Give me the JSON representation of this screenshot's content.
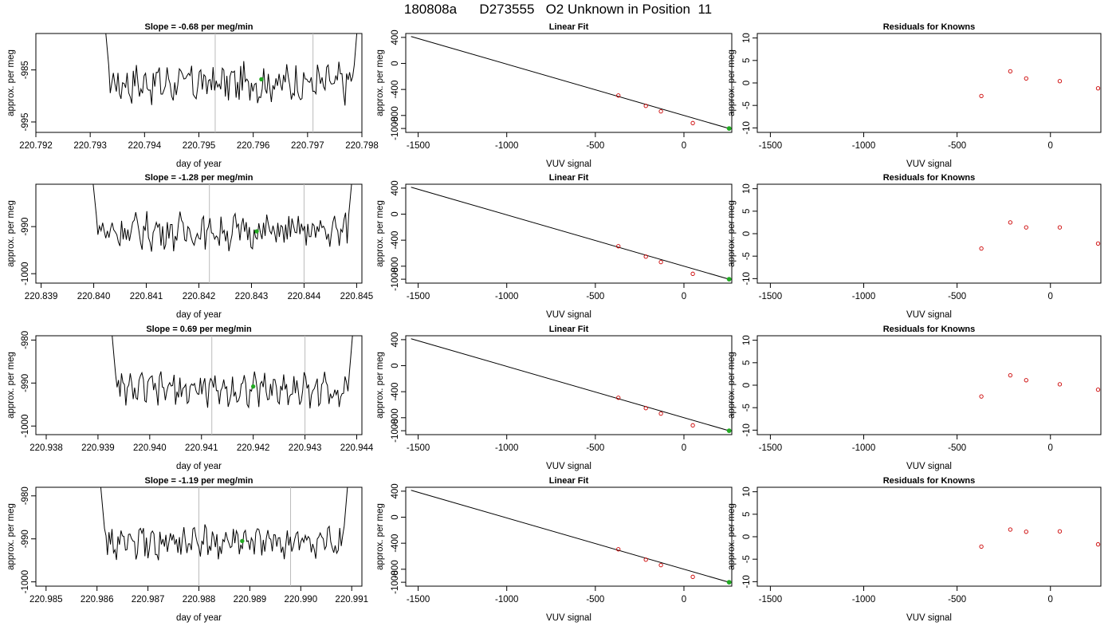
{
  "figure": {
    "title": "180808a      D273555   O2 Unknown in Position  11"
  },
  "chart_data": [
    {
      "type": "line",
      "title": "Slope =  -0.68  per meg/min",
      "xlabel": "day of year",
      "ylabel": "approx. per meg",
      "xlim": [
        220.792,
        220.798
      ],
      "ylim": [
        -997,
        -978
      ],
      "xticks": [
        "220.792",
        "220.793",
        "220.794",
        "220.795",
        "220.796",
        "220.797",
        "220.798"
      ],
      "yticks": [
        "-985",
        "-995"
      ],
      "ytick_values": [
        -985,
        -995
      ],
      "vlines": [
        220.7953,
        220.7971
      ],
      "trace_x_range": [
        220.7932,
        220.798
      ],
      "trace_baseline": -987.5,
      "marker": {
        "x": 220.79615,
        "y": -986.8,
        "color": "#22aa22"
      }
    },
    {
      "type": "scatter",
      "title": "Linear Fit",
      "xlabel": "VUV signal",
      "ylabel": "approx. per meg",
      "xlim": [
        -1570,
        270
      ],
      "ylim": [
        -1060,
        460
      ],
      "xticks": [
        "-1500",
        "-1000",
        "-500",
        "0"
      ],
      "xtick_values": [
        -1500,
        -1000,
        -500,
        0
      ],
      "yticks": [
        "-1000",
        "-800",
        "-400",
        "0",
        "400"
      ],
      "ytick_values": [
        -1000,
        -800,
        -400,
        0,
        400
      ],
      "series": [
        {
          "kind": "points",
          "x": [
            -370,
            -215,
            -130,
            50
          ],
          "y": [
            -493,
            -652,
            -737,
            -917
          ],
          "color": "#cc0000"
        },
        {
          "kind": "fit_line",
          "x": [
            -1540,
            255
          ],
          "y": [
            414,
            -1000
          ],
          "color": "#000000"
        },
        {
          "kind": "unknown_point",
          "x": [
            255
          ],
          "y": [
            -1000
          ],
          "color": "#22aa22"
        }
      ]
    },
    {
      "type": "scatter",
      "title": "Residuals for Knowns",
      "xlabel": "VUV signal",
      "ylabel": "approx. per meg",
      "xlim": [
        -1570,
        270
      ],
      "ylim": [
        -11,
        11
      ],
      "xticks": [
        "-1500",
        "-1000",
        "-500",
        "0"
      ],
      "xtick_values": [
        -1500,
        -1000,
        -500,
        0
      ],
      "yticks": [
        "-10",
        "-5",
        "0",
        "5",
        "10"
      ],
      "ytick_values": [
        -10,
        -5,
        0,
        5,
        10
      ],
      "series": [
        {
          "kind": "points",
          "x": [
            -370,
            -215,
            -130,
            50,
            255
          ],
          "y": [
            -2.9,
            2.6,
            1.0,
            0.4,
            -1.2
          ],
          "color": "#cc0000"
        }
      ]
    },
    {
      "type": "line",
      "title": "Slope =  -1.28  per meg/min",
      "xlabel": "day of year",
      "ylabel": "approx. per meg",
      "xlim": [
        220.8389,
        220.8451
      ],
      "ylim": [
        -1002,
        -981
      ],
      "xticks": [
        "220.839",
        "220.840",
        "220.841",
        "220.842",
        "220.843",
        "220.844",
        "220.845"
      ],
      "yticks": [
        "-990",
        "-1000"
      ],
      "ytick_values": [
        -990,
        -1000
      ],
      "vlines": [
        220.8422,
        220.844
      ],
      "trace_x_range": [
        220.8399,
        220.845
      ],
      "trace_baseline": -991,
      "marker": {
        "x": 220.8431,
        "y": -991,
        "color": "#22aa22"
      }
    },
    {
      "type": "scatter",
      "title": "Linear Fit",
      "xlabel": "VUV signal",
      "ylabel": "approx. per meg",
      "xlim": [
        -1570,
        270
      ],
      "ylim": [
        -1060,
        460
      ],
      "xticks": [
        "-1500",
        "-1000",
        "-500",
        "0"
      ],
      "xtick_values": [
        -1500,
        -1000,
        -500,
        0
      ],
      "yticks": [
        "-1000",
        "-800",
        "-400",
        "0",
        "400"
      ],
      "ytick_values": [
        -1000,
        -800,
        -400,
        0,
        400
      ],
      "series": [
        {
          "kind": "points",
          "x": [
            -370,
            -215,
            -130,
            50
          ],
          "y": [
            -493,
            -652,
            -737,
            -917
          ],
          "color": "#cc0000"
        },
        {
          "kind": "fit_line",
          "x": [
            -1540,
            255
          ],
          "y": [
            414,
            -1000
          ],
          "color": "#000000"
        },
        {
          "kind": "unknown_point",
          "x": [
            255
          ],
          "y": [
            -1000
          ],
          "color": "#22aa22"
        }
      ]
    },
    {
      "type": "scatter",
      "title": "Residuals for Knowns",
      "xlabel": "VUV signal",
      "ylabel": "approx. per meg",
      "xlim": [
        -1570,
        270
      ],
      "ylim": [
        -11,
        11
      ],
      "xticks": [
        "-1500",
        "-1000",
        "-500",
        "0"
      ],
      "xtick_values": [
        -1500,
        -1000,
        -500,
        0
      ],
      "yticks": [
        "-10",
        "-5",
        "0",
        "5",
        "10"
      ],
      "ytick_values": [
        -10,
        -5,
        0,
        5,
        10
      ],
      "series": [
        {
          "kind": "points",
          "x": [
            -370,
            -215,
            -130,
            50,
            255
          ],
          "y": [
            -3.3,
            2.5,
            1.4,
            1.4,
            -2.2
          ],
          "color": "#cc0000"
        }
      ]
    },
    {
      "type": "line",
      "title": "Slope =  0.69  per meg/min",
      "xlabel": "day of year",
      "ylabel": "approx. per meg",
      "xlim": [
        220.9378,
        220.9441
      ],
      "ylim": [
        -1002,
        -979
      ],
      "xticks": [
        "220.938",
        "220.939",
        "220.940",
        "220.941",
        "220.942",
        "220.943",
        "220.944"
      ],
      "yticks": [
        "-980",
        "-990",
        "-1000"
      ],
      "ytick_values": [
        -980,
        -990,
        -1000
      ],
      "vlines": [
        220.9412,
        220.943
      ],
      "trace_x_range": [
        220.9392,
        220.944
      ],
      "trace_baseline": -991.5,
      "marker": {
        "x": 220.942,
        "y": -990.8,
        "color": "#22aa22"
      }
    },
    {
      "type": "scatter",
      "title": "Linear Fit",
      "xlabel": "VUV signal",
      "ylabel": "approx. per meg",
      "xlim": [
        -1570,
        270
      ],
      "ylim": [
        -1060,
        460
      ],
      "xticks": [
        "-1500",
        "-1000",
        "-500",
        "0"
      ],
      "xtick_values": [
        -1500,
        -1000,
        -500,
        0
      ],
      "yticks": [
        "-1000",
        "-800",
        "-400",
        "0",
        "400"
      ],
      "ytick_values": [
        -1000,
        -800,
        -400,
        0,
        400
      ],
      "series": [
        {
          "kind": "points",
          "x": [
            -370,
            -215,
            -130,
            50
          ],
          "y": [
            -493,
            -652,
            -737,
            -917
          ],
          "color": "#cc0000"
        },
        {
          "kind": "fit_line",
          "x": [
            -1540,
            255
          ],
          "y": [
            414,
            -1000
          ],
          "color": "#000000"
        },
        {
          "kind": "unknown_point",
          "x": [
            255
          ],
          "y": [
            -1000
          ],
          "color": "#22aa22"
        }
      ]
    },
    {
      "type": "scatter",
      "title": "Residuals for Knowns",
      "xlabel": "VUV signal",
      "ylabel": "approx. per meg",
      "xlim": [
        -1570,
        270
      ],
      "ylim": [
        -11,
        11
      ],
      "xticks": [
        "-1500",
        "-1000",
        "-500",
        "0"
      ],
      "xtick_values": [
        -1500,
        -1000,
        -500,
        0
      ],
      "yticks": [
        "-10",
        "-5",
        "0",
        "5",
        "10"
      ],
      "ytick_values": [
        -10,
        -5,
        0,
        5,
        10
      ],
      "series": [
        {
          "kind": "points",
          "x": [
            -370,
            -215,
            -130,
            50,
            255
          ],
          "y": [
            -2.5,
            2.2,
            1.1,
            0.2,
            -1.0
          ],
          "color": "#cc0000"
        }
      ]
    },
    {
      "type": "line",
      "title": "Slope =  -1.19  per meg/min",
      "xlabel": "day of year",
      "ylabel": "approx. per meg",
      "xlim": [
        220.9848,
        220.9912
      ],
      "ylim": [
        -1001,
        -978
      ],
      "xticks": [
        "220.985",
        "220.986",
        "220.987",
        "220.988",
        "220.989",
        "220.990",
        "220.991"
      ],
      "yticks": [
        "-980",
        "-990",
        "-1000"
      ],
      "ytick_values": [
        -980,
        -990,
        -1000
      ],
      "vlines": [
        220.988,
        220.9898
      ],
      "trace_x_range": [
        220.986,
        220.991
      ],
      "trace_baseline": -991,
      "marker": {
        "x": 220.98885,
        "y": -990.5,
        "color": "#22aa22"
      }
    },
    {
      "type": "scatter",
      "title": "Linear Fit",
      "xlabel": "VUV signal",
      "ylabel": "approx. per meg",
      "xlim": [
        -1570,
        270
      ],
      "ylim": [
        -1060,
        460
      ],
      "xticks": [
        "-1500",
        "-1000",
        "-500",
        "0"
      ],
      "xtick_values": [
        -1500,
        -1000,
        -500,
        0
      ],
      "yticks": [
        "-1000",
        "-800",
        "-400",
        "0",
        "400"
      ],
      "ytick_values": [
        -1000,
        -800,
        -400,
        0,
        400
      ],
      "series": [
        {
          "kind": "points",
          "x": [
            -370,
            -215,
            -130,
            50
          ],
          "y": [
            -493,
            -652,
            -737,
            -917
          ],
          "color": "#cc0000"
        },
        {
          "kind": "fit_line",
          "x": [
            -1540,
            255
          ],
          "y": [
            414,
            -1000
          ],
          "color": "#000000"
        },
        {
          "kind": "unknown_point",
          "x": [
            255
          ],
          "y": [
            -1000
          ],
          "color": "#22aa22"
        }
      ]
    },
    {
      "type": "scatter",
      "title": "Residuals for Knowns",
      "xlabel": "VUV signal",
      "ylabel": "approx. per meg",
      "xlim": [
        -1570,
        270
      ],
      "ylim": [
        -11,
        11
      ],
      "xticks": [
        "-1500",
        "-1000",
        "-500",
        "0"
      ],
      "xtick_values": [
        -1500,
        -1000,
        -500,
        0
      ],
      "yticks": [
        "-10",
        "-5",
        "0",
        "5",
        "10"
      ],
      "ytick_values": [
        -10,
        -5,
        0,
        5,
        10
      ],
      "series": [
        {
          "kind": "points",
          "x": [
            -370,
            -215,
            -130,
            50,
            255
          ],
          "y": [
            -2.2,
            1.6,
            1.1,
            1.2,
            -1.7
          ],
          "color": "#cc0000"
        }
      ]
    }
  ]
}
